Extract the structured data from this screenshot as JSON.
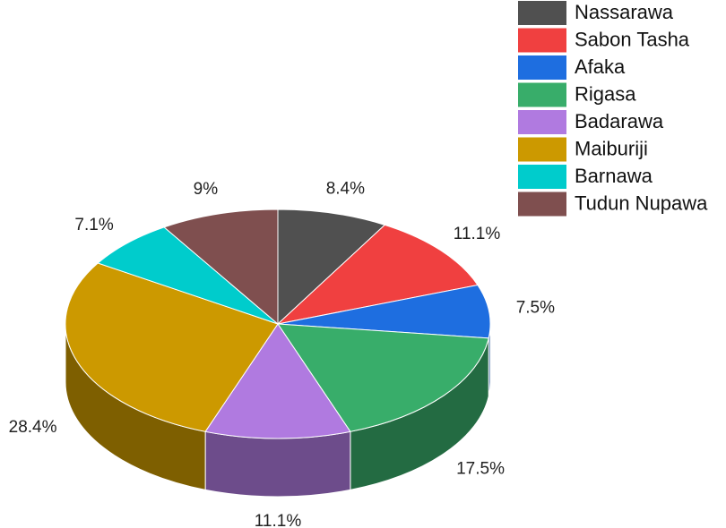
{
  "chart_data": {
    "type": "pie",
    "categories": [
      "Nassarawa",
      "Sabon Tasha",
      "Afaka",
      "Rigasa",
      "Badarawa",
      "Maiburiji",
      "Barnawa",
      "Tudun Nupawa"
    ],
    "values": [
      8.4,
      11.1,
      7.5,
      17.5,
      11.1,
      28.4,
      7.1,
      9
    ],
    "value_labels": [
      "8.4%",
      "11.1%",
      "7.5%",
      "17.5%",
      "11.1%",
      "28.4%",
      "7.1%",
      "9%"
    ],
    "colors": [
      "#505050",
      "#f04040",
      "#1e6ee0",
      "#38ad6a",
      "#b07ae0",
      "#cc9900",
      "#00cccc",
      "#7f4f4f"
    ],
    "legend": "top-right"
  }
}
